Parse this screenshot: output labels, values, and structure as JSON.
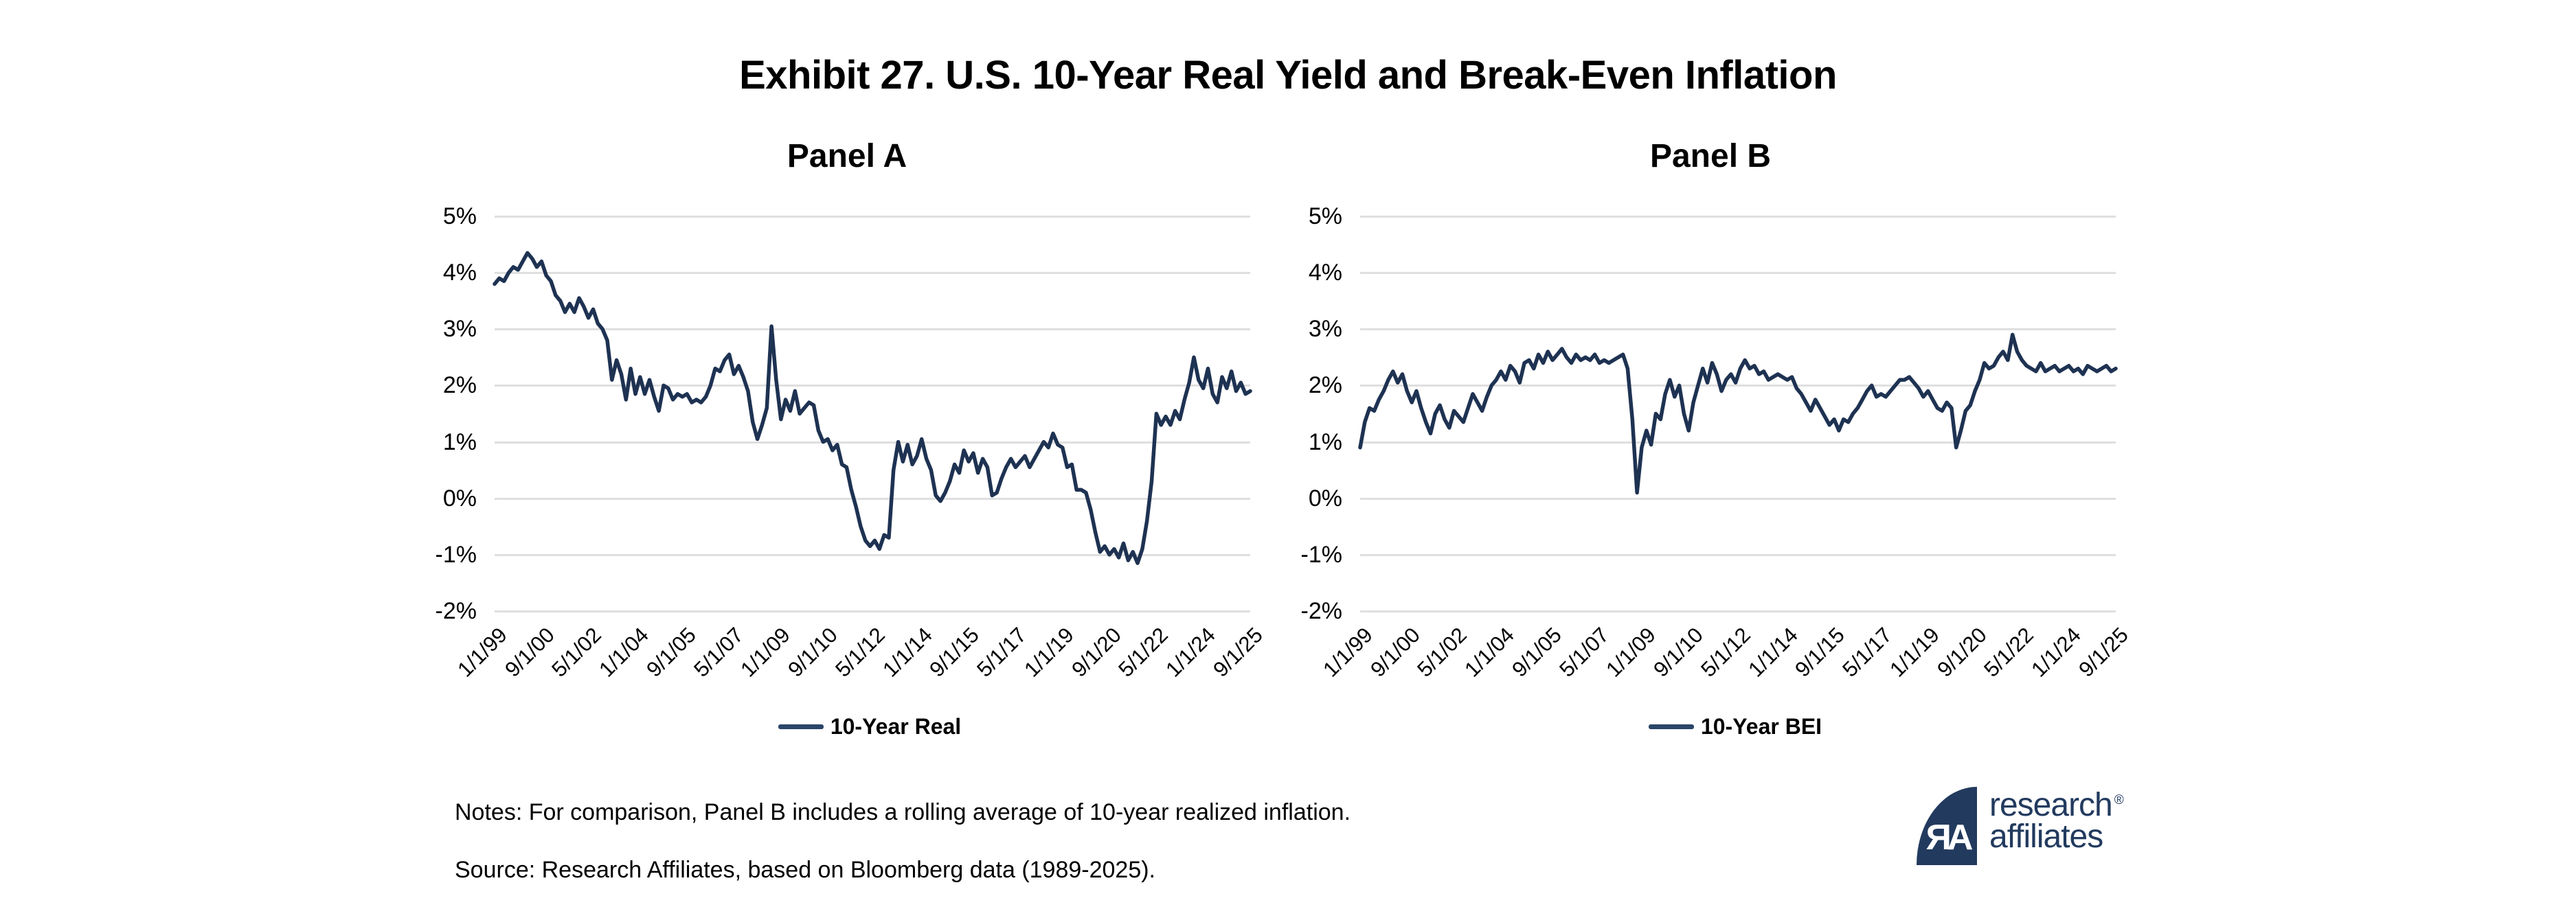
{
  "title": "Exhibit 27. U.S. 10-Year Real Yield and Break-Even Inflation",
  "notes": "Notes: For comparison, Panel B includes a rolling average of 10-year realized inflation.",
  "source": "Source: Research Affiliates, based on Bloomberg data (1989-2025).",
  "logo": {
    "brand_line1": "research",
    "brand_line2": "affiliates",
    "monogram": "ЯA",
    "registered_mark": "®"
  },
  "colors": {
    "line": "#1e3252",
    "legend_swatch": "#2a4568",
    "gridline": "#dfdfdf",
    "logo_navy": "#223a5e",
    "text": "#000000"
  },
  "chart_data": [
    {
      "type": "line",
      "panel": "Panel A",
      "grid": "horizontal",
      "legend_position": "bottom",
      "ylim": [
        -2,
        5
      ],
      "y_tick_labels": [
        "5%",
        "4%",
        "3%",
        "2%",
        "1%",
        "0%",
        "-1%",
        "-2%"
      ],
      "x_tick_labels": [
        "1/1/99",
        "9/1/00",
        "5/1/02",
        "1/1/04",
        "9/1/05",
        "5/1/07",
        "1/1/09",
        "9/1/10",
        "5/1/12",
        "1/1/14",
        "9/1/15",
        "5/1/17",
        "1/1/19",
        "9/1/20",
        "5/1/22",
        "1/1/24",
        "9/1/25"
      ],
      "x_start": "1/1/1999",
      "x_end": "11/1/2025",
      "points_per_year": 6,
      "series": [
        {
          "name": "10-Year Real",
          "values": [
            3.8,
            3.9,
            3.85,
            4.0,
            4.1,
            4.05,
            4.2,
            4.35,
            4.25,
            4.1,
            4.2,
            3.95,
            3.85,
            3.6,
            3.5,
            3.3,
            3.45,
            3.3,
            3.55,
            3.4,
            3.2,
            3.35,
            3.1,
            3.0,
            2.8,
            2.1,
            2.45,
            2.2,
            1.75,
            2.3,
            1.85,
            2.15,
            1.85,
            2.1,
            1.8,
            1.55,
            2.0,
            1.95,
            1.75,
            1.85,
            1.8,
            1.85,
            1.7,
            1.75,
            1.7,
            1.8,
            2.0,
            2.3,
            2.25,
            2.45,
            2.55,
            2.2,
            2.35,
            2.15,
            1.9,
            1.35,
            1.05,
            1.3,
            1.6,
            3.05,
            2.1,
            1.4,
            1.75,
            1.55,
            1.9,
            1.5,
            1.6,
            1.7,
            1.65,
            1.2,
            1.0,
            1.05,
            0.85,
            0.95,
            0.6,
            0.55,
            0.15,
            -0.15,
            -0.5,
            -0.75,
            -0.85,
            -0.75,
            -0.9,
            -0.65,
            -0.7,
            0.5,
            1.0,
            0.65,
            0.95,
            0.6,
            0.75,
            1.05,
            0.7,
            0.5,
            0.05,
            -0.05,
            0.1,
            0.3,
            0.6,
            0.45,
            0.85,
            0.65,
            0.8,
            0.45,
            0.7,
            0.55,
            0.05,
            0.1,
            0.35,
            0.55,
            0.7,
            0.55,
            0.65,
            0.75,
            0.55,
            0.7,
            0.85,
            1.0,
            0.9,
            1.15,
            0.95,
            0.9,
            0.55,
            0.6,
            0.15,
            0.15,
            0.1,
            -0.2,
            -0.6,
            -0.95,
            -0.85,
            -1.0,
            -0.9,
            -1.05,
            -0.8,
            -1.1,
            -0.95,
            -1.15,
            -0.9,
            -0.4,
            0.3,
            1.5,
            1.3,
            1.45,
            1.3,
            1.55,
            1.4,
            1.75,
            2.05,
            2.5,
            2.1,
            1.95,
            2.3,
            1.85,
            1.7,
            2.15,
            1.95,
            2.25,
            1.9,
            2.05,
            1.85,
            1.9
          ]
        }
      ]
    },
    {
      "type": "line",
      "panel": "Panel B",
      "grid": "horizontal",
      "legend_position": "bottom",
      "ylim": [
        -2,
        5
      ],
      "y_tick_labels": [
        "5%",
        "4%",
        "3%",
        "2%",
        "1%",
        "0%",
        "-1%",
        "-2%"
      ],
      "x_tick_labels": [
        "1/1/99",
        "9/1/00",
        "5/1/02",
        "1/1/04",
        "9/1/05",
        "5/1/07",
        "1/1/09",
        "9/1/10",
        "5/1/12",
        "1/1/14",
        "9/1/15",
        "5/1/17",
        "1/1/19",
        "9/1/20",
        "5/1/22",
        "1/1/24",
        "9/1/25"
      ],
      "x_start": "1/1/1999",
      "x_end": "11/1/2025",
      "points_per_year": 6,
      "series": [
        {
          "name": "10-Year BEI",
          "values": [
            0.9,
            1.35,
            1.6,
            1.55,
            1.75,
            1.9,
            2.1,
            2.25,
            2.05,
            2.2,
            1.9,
            1.7,
            1.9,
            1.6,
            1.35,
            1.15,
            1.5,
            1.65,
            1.4,
            1.25,
            1.55,
            1.45,
            1.35,
            1.6,
            1.85,
            1.7,
            1.55,
            1.8,
            2.0,
            2.1,
            2.25,
            2.1,
            2.35,
            2.25,
            2.05,
            2.4,
            2.45,
            2.3,
            2.55,
            2.4,
            2.6,
            2.45,
            2.55,
            2.65,
            2.5,
            2.4,
            2.55,
            2.45,
            2.5,
            2.45,
            2.55,
            2.4,
            2.45,
            2.4,
            2.45,
            2.5,
            2.55,
            2.3,
            1.4,
            0.1,
            0.9,
            1.2,
            0.95,
            1.5,
            1.4,
            1.85,
            2.1,
            1.8,
            2.0,
            1.5,
            1.2,
            1.7,
            2.0,
            2.3,
            2.05,
            2.4,
            2.2,
            1.9,
            2.1,
            2.2,
            2.05,
            2.3,
            2.45,
            2.3,
            2.35,
            2.2,
            2.25,
            2.1,
            2.15,
            2.2,
            2.15,
            2.1,
            2.15,
            1.95,
            1.85,
            1.7,
            1.55,
            1.75,
            1.6,
            1.45,
            1.3,
            1.4,
            1.2,
            1.4,
            1.35,
            1.5,
            1.6,
            1.75,
            1.9,
            2.0,
            1.8,
            1.85,
            1.8,
            1.9,
            2.0,
            2.1,
            2.1,
            2.15,
            2.05,
            1.95,
            1.8,
            1.9,
            1.75,
            1.6,
            1.55,
            1.7,
            1.6,
            0.9,
            1.2,
            1.55,
            1.65,
            1.9,
            2.1,
            2.4,
            2.3,
            2.35,
            2.5,
            2.6,
            2.45,
            2.9,
            2.6,
            2.45,
            2.35,
            2.3,
            2.25,
            2.4,
            2.25,
            2.3,
            2.35,
            2.25,
            2.3,
            2.35,
            2.25,
            2.3,
            2.2,
            2.35,
            2.3,
            2.25,
            2.3,
            2.35,
            2.25,
            2.3
          ]
        }
      ]
    }
  ]
}
